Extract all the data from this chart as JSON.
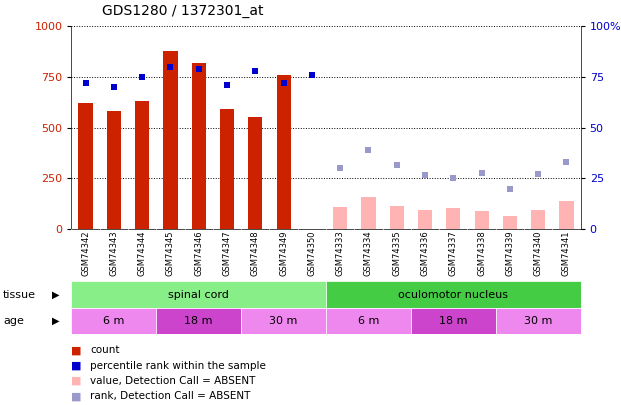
{
  "title": "GDS1280 / 1372301_at",
  "samples": [
    "GSM74342",
    "GSM74343",
    "GSM74344",
    "GSM74345",
    "GSM74346",
    "GSM74347",
    "GSM74348",
    "GSM74349",
    "GSM74350",
    "GSM74333",
    "GSM74334",
    "GSM74335",
    "GSM74336",
    "GSM74337",
    "GSM74338",
    "GSM74339",
    "GSM74340",
    "GSM74341"
  ],
  "count_values": [
    620,
    580,
    630,
    880,
    820,
    590,
    550,
    760,
    null,
    null,
    null,
    null,
    null,
    null,
    null,
    null,
    null,
    null
  ],
  "percentile_rank": [
    72,
    70,
    75,
    80,
    79,
    71,
    78,
    72,
    76,
    null,
    null,
    null,
    null,
    null,
    null,
    null,
    null,
    null
  ],
  "absent_value": [
    null,
    null,
    null,
    null,
    null,
    null,
    null,
    null,
    null,
    110,
    155,
    115,
    95,
    105,
    90,
    65,
    95,
    135
  ],
  "absent_rank": [
    null,
    null,
    null,
    null,
    null,
    null,
    null,
    null,
    null,
    30,
    39,
    31.5,
    26.5,
    25,
    27.5,
    19.5,
    27,
    33
  ],
  "ylim_left": [
    0,
    1000
  ],
  "ylim_right": [
    0,
    100
  ],
  "yticks_left": [
    0,
    250,
    500,
    750,
    1000
  ],
  "yticks_right": [
    0,
    25,
    50,
    75,
    100
  ],
  "bar_color_present": "#cc2200",
  "bar_color_absent": "#ffb3b3",
  "dot_color_present": "#0000cc",
  "dot_color_absent": "#9999cc",
  "tissue_groups": [
    {
      "label": "spinal cord",
      "start": 0,
      "end": 9,
      "color": "#88ee88"
    },
    {
      "label": "oculomotor nucleus",
      "start": 9,
      "end": 18,
      "color": "#44cc44"
    }
  ],
  "age_groups": [
    {
      "label": "6 m",
      "start": 0,
      "end": 3,
      "color": "#ee88ee"
    },
    {
      "label": "18 m",
      "start": 3,
      "end": 6,
      "color": "#cc44cc"
    },
    {
      "label": "30 m",
      "start": 6,
      "end": 9,
      "color": "#ee88ee"
    },
    {
      "label": "6 m",
      "start": 9,
      "end": 12,
      "color": "#ee88ee"
    },
    {
      "label": "18 m",
      "start": 12,
      "end": 15,
      "color": "#cc44cc"
    },
    {
      "label": "30 m",
      "start": 15,
      "end": 18,
      "color": "#ee88ee"
    }
  ],
  "legend_items": [
    {
      "label": "count",
      "color": "#cc2200"
    },
    {
      "label": "percentile rank within the sample",
      "color": "#0000cc"
    },
    {
      "label": "value, Detection Call = ABSENT",
      "color": "#ffb3b3"
    },
    {
      "label": "rank, Detection Call = ABSENT",
      "color": "#9999cc"
    }
  ],
  "background_color": "#ffffff",
  "plot_bg_color": "#ffffff",
  "xticklabel_bg": "#d8d8d8"
}
